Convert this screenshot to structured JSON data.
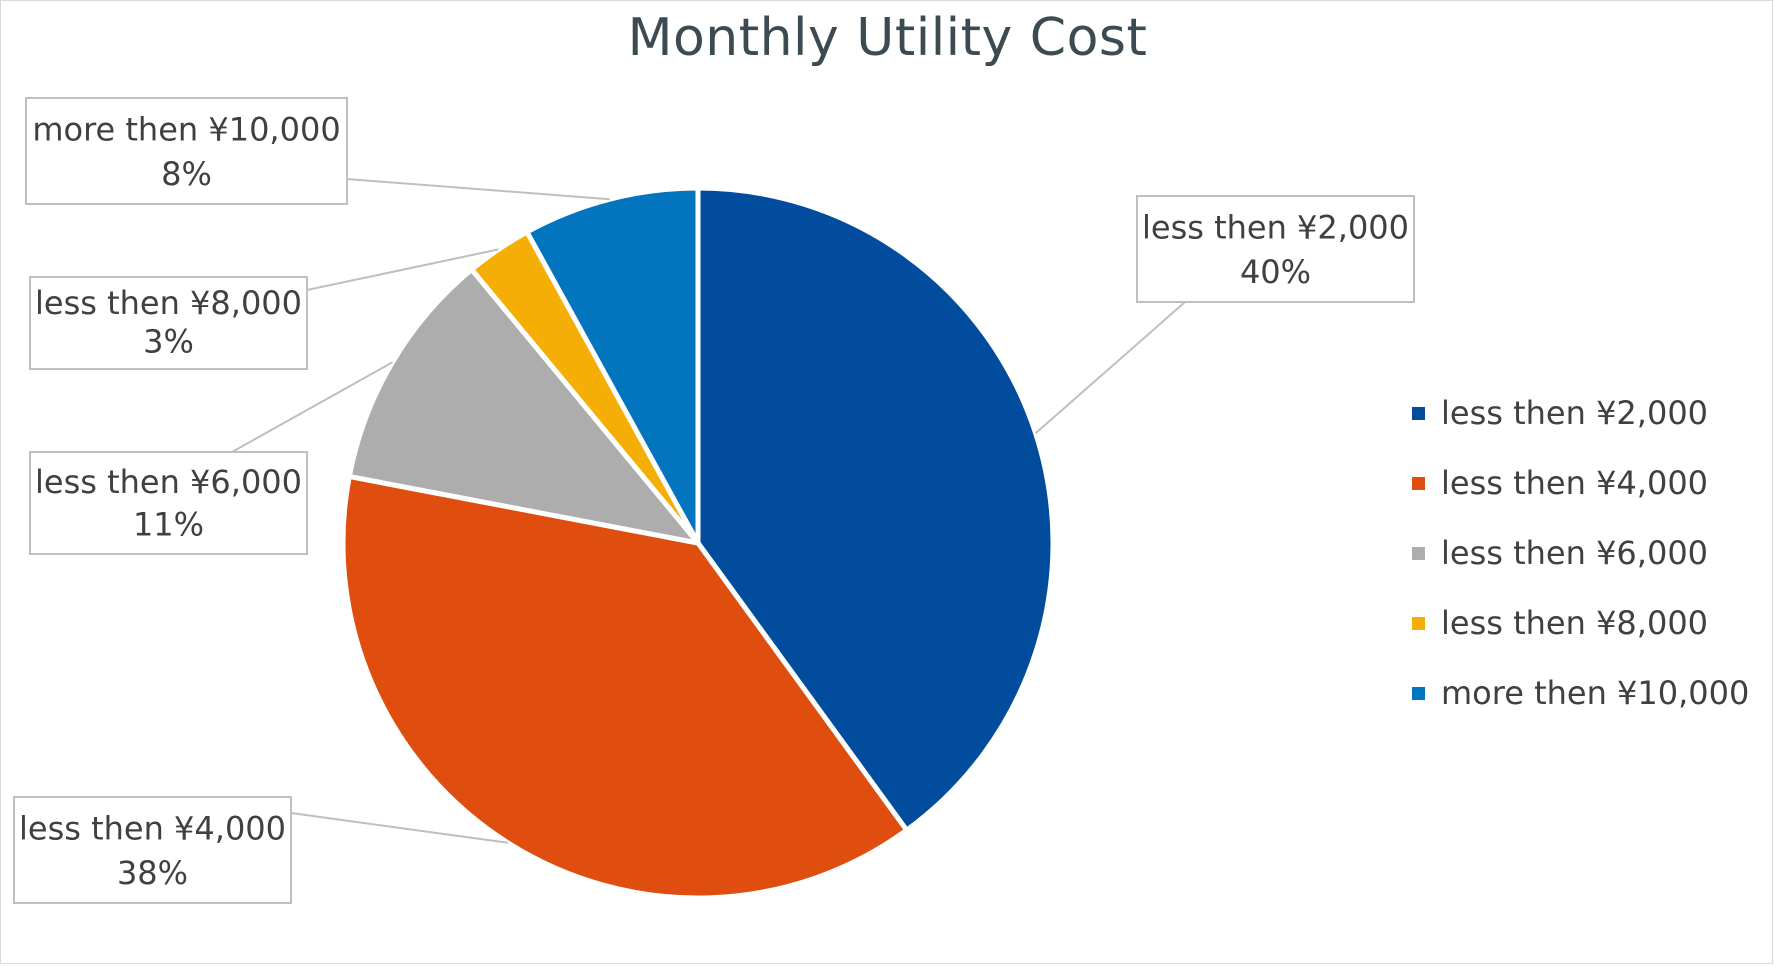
{
  "chart_data": {
    "type": "pie",
    "title": "Monthly Utility Cost",
    "legend_position": "right",
    "slices": [
      {
        "label": "less then ¥2,000",
        "value": 40,
        "percent_label": "40%",
        "color": "#024C9E"
      },
      {
        "label": "less then ¥4,000",
        "value": 38,
        "percent_label": "38%",
        "color": "#DF4E0F"
      },
      {
        "label": "less then ¥6,000",
        "value": 11,
        "percent_label": "11%",
        "color": "#ADADAD"
      },
      {
        "label": "less then ¥8,000",
        "value": 3,
        "percent_label": "3%",
        "color": "#F5AE05"
      },
      {
        "label": "more then ¥10,000",
        "value": 8,
        "percent_label": "8%",
        "color": "#0375BF"
      }
    ]
  }
}
